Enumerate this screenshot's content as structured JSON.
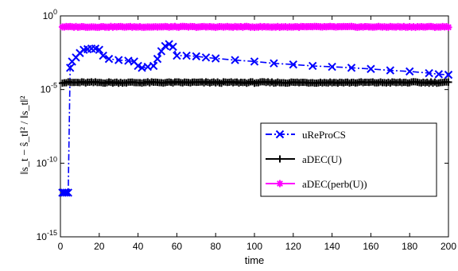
{
  "chart_data": {
    "type": "line",
    "xlabel": "time",
    "ylabel": "‖s_t − ŝ_t‖² / ‖s_t‖²",
    "xlim": [
      0,
      200
    ],
    "ylim_log10": [
      -15,
      0
    ],
    "y_scale": "log",
    "x_ticks": [
      "0",
      "20",
      "40",
      "60",
      "80",
      "100",
      "120",
      "140",
      "160",
      "180",
      "200"
    ],
    "y_ticks": [
      {
        "base": "10",
        "exp": "0"
      },
      {
        "base": "10",
        "exp": "-5"
      },
      {
        "base": "10",
        "exp": "-10"
      },
      {
        "base": "10",
        "exp": "-15"
      }
    ],
    "grid": false,
    "legend_position": "center-right",
    "series": [
      {
        "name": "uReProCS",
        "color": "#0000ff",
        "marker": "x",
        "linestyle": "dashdot",
        "points": [
          [
            1,
            1e-12
          ],
          [
            2,
            1e-12
          ],
          [
            3,
            1e-12
          ],
          [
            4,
            1e-12
          ],
          [
            5,
            0.0003
          ],
          [
            6,
            0.0008
          ],
          [
            8,
            0.0015
          ],
          [
            10,
            0.003
          ],
          [
            12,
            0.005
          ],
          [
            14,
            0.0055
          ],
          [
            16,
            0.006
          ],
          [
            18,
            0.006
          ],
          [
            20,
            0.005
          ],
          [
            22,
            0.002
          ],
          [
            25,
            0.0012
          ],
          [
            30,
            0.001
          ],
          [
            35,
            0.0009
          ],
          [
            38,
            0.0008
          ],
          [
            40,
            0.0004
          ],
          [
            42,
            0.0003
          ],
          [
            45,
            0.00035
          ],
          [
            48,
            0.0004
          ],
          [
            50,
            0.0012
          ],
          [
            52,
            0.004
          ],
          [
            54,
            0.009
          ],
          [
            56,
            0.012
          ],
          [
            58,
            0.008
          ],
          [
            60,
            0.002
          ],
          [
            65,
            0.002
          ],
          [
            70,
            0.0018
          ],
          [
            75,
            0.0015
          ],
          [
            80,
            0.0013
          ],
          [
            90,
            0.001
          ],
          [
            100,
            0.0008
          ],
          [
            110,
            0.0006
          ],
          [
            120,
            0.0005
          ],
          [
            130,
            0.0004
          ],
          [
            140,
            0.00035
          ],
          [
            150,
            0.0003
          ],
          [
            160,
            0.00025
          ],
          [
            170,
            0.0002
          ],
          [
            180,
            0.00017
          ],
          [
            190,
            0.00013
          ],
          [
            195,
            0.00011
          ],
          [
            200,
            0.0001
          ]
        ]
      },
      {
        "name": "aDEC(U)",
        "color": "#000000",
        "marker": "+",
        "linestyle": "solid",
        "baseline": 3e-05,
        "jitter": 0.05
      },
      {
        "name": "aDEC(perb(U))",
        "color": "#ff00ff",
        "marker": "*",
        "linestyle": "solid",
        "baseline": 0.18,
        "jitter": 0.03
      }
    ]
  }
}
